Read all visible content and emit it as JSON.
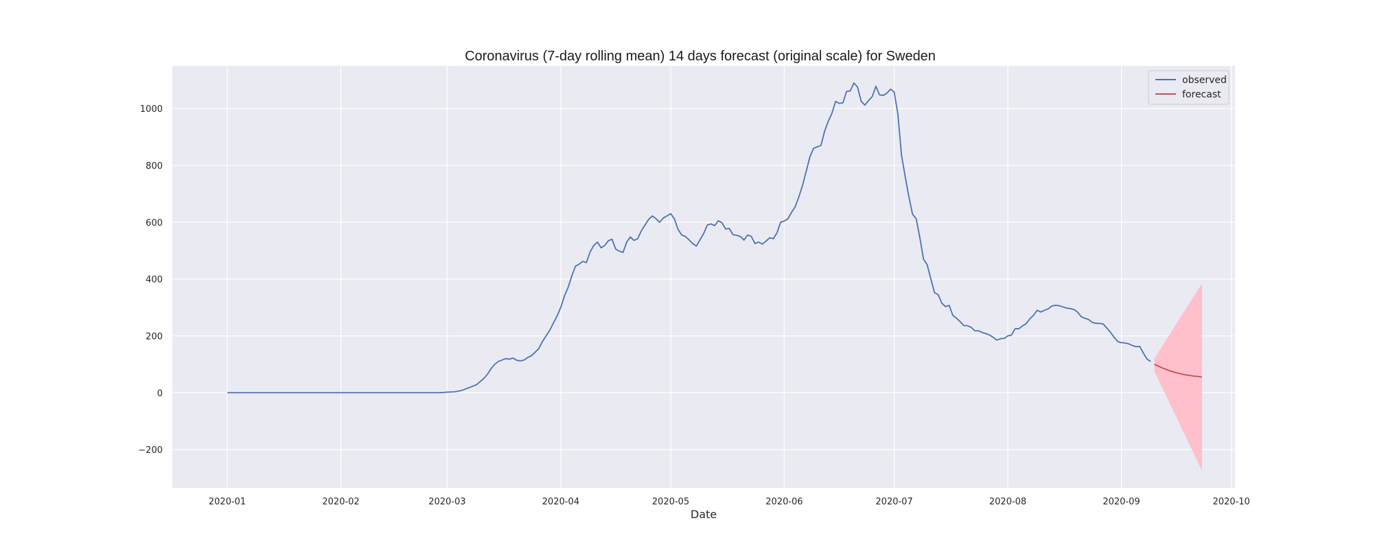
{
  "chart_data": {
    "type": "line",
    "title": "Coronavirus (7-day rolling mean) 14 days forecast (original scale) for Sweden",
    "xlabel": "Date",
    "ylabel": "",
    "x_scale": "date",
    "xlim": [
      "2019-12-17",
      "2020-10-02"
    ],
    "ylim": [
      -335,
      1150
    ],
    "x_ticks": [
      "2020-01-01",
      "2020-02-01",
      "2020-03-01",
      "2020-04-01",
      "2020-05-01",
      "2020-06-01",
      "2020-07-01",
      "2020-08-01",
      "2020-09-01",
      "2020-10-01"
    ],
    "x_tick_labels": [
      "2020-01",
      "2020-02",
      "2020-03",
      "2020-04",
      "2020-05",
      "2020-06",
      "2020-07",
      "2020-08",
      "2020-09",
      "2020-10"
    ],
    "y_ticks": [
      -200,
      0,
      200,
      400,
      600,
      800,
      1000
    ],
    "y_tick_labels": [
      "−200",
      "0",
      "200",
      "400",
      "600",
      "800",
      "1000"
    ],
    "grid": true,
    "legend": {
      "position": "top-right",
      "entries": [
        "observed",
        "forecast"
      ]
    },
    "colors": {
      "background": "#eaeaf2",
      "grid": "#ffffff",
      "observed": "#4c72b0",
      "forecast": "#c44e52",
      "band": "#ffc0cb"
    },
    "series": [
      {
        "name": "observed",
        "color": "#4c72b0",
        "points": [
          [
            "2020-01-01",
            0
          ],
          [
            "2020-02-01",
            0
          ],
          [
            "2020-02-28",
            0
          ],
          [
            "2020-03-01",
            2
          ],
          [
            "2020-03-03",
            3
          ],
          [
            "2020-03-05",
            8
          ],
          [
            "2020-03-07",
            18
          ],
          [
            "2020-03-09",
            28
          ],
          [
            "2020-03-11",
            50
          ],
          [
            "2020-03-12",
            65
          ],
          [
            "2020-03-13",
            85
          ],
          [
            "2020-03-14",
            100
          ],
          [
            "2020-03-15",
            110
          ],
          [
            "2020-03-17",
            120
          ],
          [
            "2020-03-18",
            118
          ],
          [
            "2020-03-19",
            122
          ],
          [
            "2020-03-20",
            114
          ],
          [
            "2020-03-21",
            112
          ],
          [
            "2020-03-22",
            115
          ],
          [
            "2020-03-23",
            124
          ],
          [
            "2020-03-24",
            130
          ],
          [
            "2020-03-26",
            155
          ],
          [
            "2020-03-27",
            180
          ],
          [
            "2020-03-29",
            220
          ],
          [
            "2020-03-31",
            270
          ],
          [
            "2020-04-01",
            300
          ],
          [
            "2020-04-02",
            340
          ],
          [
            "2020-04-03",
            370
          ],
          [
            "2020-04-04",
            410
          ],
          [
            "2020-04-05",
            445
          ],
          [
            "2020-04-06",
            452
          ],
          [
            "2020-04-07",
            462
          ],
          [
            "2020-04-08",
            458
          ],
          [
            "2020-04-09",
            495
          ],
          [
            "2020-04-10",
            518
          ],
          [
            "2020-04-11",
            530
          ],
          [
            "2020-04-12",
            510
          ],
          [
            "2020-04-13",
            518
          ],
          [
            "2020-04-14",
            535
          ],
          [
            "2020-04-15",
            540
          ],
          [
            "2020-04-16",
            505
          ],
          [
            "2020-04-17",
            498
          ],
          [
            "2020-04-18",
            494
          ],
          [
            "2020-04-19",
            530
          ],
          [
            "2020-04-20",
            548
          ],
          [
            "2020-04-21",
            536
          ],
          [
            "2020-04-22",
            542
          ],
          [
            "2020-04-23",
            570
          ],
          [
            "2020-04-24",
            590
          ],
          [
            "2020-04-25",
            610
          ],
          [
            "2020-04-26",
            622
          ],
          [
            "2020-04-27",
            612
          ],
          [
            "2020-04-28",
            600
          ],
          [
            "2020-04-29",
            615
          ],
          [
            "2020-04-30",
            622
          ],
          [
            "2020-05-01",
            630
          ],
          [
            "2020-05-02",
            612
          ],
          [
            "2020-05-03",
            575
          ],
          [
            "2020-05-04",
            555
          ],
          [
            "2020-05-05",
            550
          ],
          [
            "2020-05-06",
            538
          ],
          [
            "2020-05-07",
            525
          ],
          [
            "2020-05-08",
            516
          ],
          [
            "2020-05-09",
            538
          ],
          [
            "2020-05-10",
            560
          ],
          [
            "2020-05-11",
            590
          ],
          [
            "2020-05-12",
            594
          ],
          [
            "2020-05-13",
            588
          ],
          [
            "2020-05-14",
            605
          ],
          [
            "2020-05-15",
            598
          ],
          [
            "2020-05-16",
            576
          ],
          [
            "2020-05-17",
            578
          ],
          [
            "2020-05-18",
            556
          ],
          [
            "2020-05-19",
            554
          ],
          [
            "2020-05-20",
            550
          ],
          [
            "2020-05-21",
            537
          ],
          [
            "2020-05-22",
            555
          ],
          [
            "2020-05-23",
            550
          ],
          [
            "2020-05-24",
            525
          ],
          [
            "2020-05-25",
            530
          ],
          [
            "2020-05-26",
            523
          ],
          [
            "2020-05-27",
            533
          ],
          [
            "2020-05-28",
            545
          ],
          [
            "2020-05-29",
            542
          ],
          [
            "2020-05-30",
            562
          ],
          [
            "2020-05-31",
            600
          ],
          [
            "2020-06-01",
            604
          ],
          [
            "2020-06-02",
            612
          ],
          [
            "2020-06-03",
            635
          ],
          [
            "2020-06-04",
            655
          ],
          [
            "2020-06-05",
            690
          ],
          [
            "2020-06-06",
            730
          ],
          [
            "2020-06-07",
            780
          ],
          [
            "2020-06-08",
            830
          ],
          [
            "2020-06-09",
            860
          ],
          [
            "2020-06-10",
            865
          ],
          [
            "2020-06-11",
            870
          ],
          [
            "2020-06-12",
            920
          ],
          [
            "2020-06-13",
            955
          ],
          [
            "2020-06-14",
            983
          ],
          [
            "2020-06-15",
            1025
          ],
          [
            "2020-06-16",
            1018
          ],
          [
            "2020-06-17",
            1020
          ],
          [
            "2020-06-18",
            1060
          ],
          [
            "2020-06-19",
            1062
          ],
          [
            "2020-06-20",
            1090
          ],
          [
            "2020-06-21",
            1075
          ],
          [
            "2020-06-22",
            1025
          ],
          [
            "2020-06-23",
            1012
          ],
          [
            "2020-06-24",
            1028
          ],
          [
            "2020-06-25",
            1042
          ],
          [
            "2020-06-26",
            1078
          ],
          [
            "2020-06-27",
            1048
          ],
          [
            "2020-06-28",
            1046
          ],
          [
            "2020-06-29",
            1054
          ],
          [
            "2020-06-30",
            1068
          ],
          [
            "2020-07-01",
            1058
          ],
          [
            "2020-07-02",
            980
          ],
          [
            "2020-07-03",
            835
          ],
          [
            "2020-07-04",
            760
          ],
          [
            "2020-07-05",
            690
          ],
          [
            "2020-07-06",
            628
          ],
          [
            "2020-07-07",
            612
          ],
          [
            "2020-07-08",
            545
          ],
          [
            "2020-07-09",
            470
          ],
          [
            "2020-07-10",
            450
          ],
          [
            "2020-07-11",
            400
          ],
          [
            "2020-07-12",
            352
          ],
          [
            "2020-07-13",
            345
          ],
          [
            "2020-07-14",
            315
          ],
          [
            "2020-07-15",
            303
          ],
          [
            "2020-07-16",
            307
          ],
          [
            "2020-07-17",
            272
          ],
          [
            "2020-07-18",
            262
          ],
          [
            "2020-07-19",
            250
          ],
          [
            "2020-07-20",
            236
          ],
          [
            "2020-07-21",
            236
          ],
          [
            "2020-07-22",
            230
          ],
          [
            "2020-07-23",
            218
          ],
          [
            "2020-07-24",
            218
          ],
          [
            "2020-07-25",
            212
          ],
          [
            "2020-07-26",
            208
          ],
          [
            "2020-07-27",
            203
          ],
          [
            "2020-07-28",
            195
          ],
          [
            "2020-07-29",
            185
          ],
          [
            "2020-07-30",
            190
          ],
          [
            "2020-07-31",
            191
          ],
          [
            "2020-08-01",
            200
          ],
          [
            "2020-08-02",
            203
          ],
          [
            "2020-08-03",
            225
          ],
          [
            "2020-08-04",
            225
          ],
          [
            "2020-08-05",
            235
          ],
          [
            "2020-08-06",
            243
          ],
          [
            "2020-08-07",
            260
          ],
          [
            "2020-08-08",
            272
          ],
          [
            "2020-08-09",
            290
          ],
          [
            "2020-08-10",
            284
          ],
          [
            "2020-08-11",
            290
          ],
          [
            "2020-08-12",
            295
          ],
          [
            "2020-08-13",
            305
          ],
          [
            "2020-08-14",
            308
          ],
          [
            "2020-08-15",
            306
          ],
          [
            "2020-08-16",
            302
          ],
          [
            "2020-08-17",
            298
          ],
          [
            "2020-08-18",
            296
          ],
          [
            "2020-08-19",
            293
          ],
          [
            "2020-08-20",
            284
          ],
          [
            "2020-08-21",
            268
          ],
          [
            "2020-08-22",
            262
          ],
          [
            "2020-08-23",
            258
          ],
          [
            "2020-08-24",
            248
          ],
          [
            "2020-08-25",
            244
          ],
          [
            "2020-08-26",
            244
          ],
          [
            "2020-08-27",
            242
          ],
          [
            "2020-08-28",
            228
          ],
          [
            "2020-08-29",
            213
          ],
          [
            "2020-08-30",
            195
          ],
          [
            "2020-08-31",
            180
          ],
          [
            "2020-09-01",
            176
          ],
          [
            "2020-09-02",
            175
          ],
          [
            "2020-09-03",
            172
          ],
          [
            "2020-09-04",
            166
          ],
          [
            "2020-09-05",
            162
          ],
          [
            "2020-09-06",
            163
          ],
          [
            "2020-09-07",
            139
          ],
          [
            "2020-09-08",
            118
          ],
          [
            "2020-09-09",
            110
          ]
        ]
      },
      {
        "name": "forecast",
        "color": "#c44e52",
        "points": [
          [
            "2020-09-10",
            100
          ],
          [
            "2020-09-11",
            94
          ],
          [
            "2020-09-12",
            88
          ],
          [
            "2020-09-13",
            83
          ],
          [
            "2020-09-14",
            78
          ],
          [
            "2020-09-15",
            74
          ],
          [
            "2020-09-16",
            70
          ],
          [
            "2020-09-17",
            67
          ],
          [
            "2020-09-18",
            64
          ],
          [
            "2020-09-19",
            62
          ],
          [
            "2020-09-20",
            60
          ],
          [
            "2020-09-21",
            58
          ],
          [
            "2020-09-22",
            57
          ],
          [
            "2020-09-23",
            55
          ]
        ]
      }
    ],
    "confidence_band": {
      "color": "#ffc0cb",
      "x": [
        "2020-09-10",
        "2020-09-23"
      ],
      "upper": [
        120,
        385
      ],
      "lower": [
        75,
        -275
      ]
    }
  }
}
